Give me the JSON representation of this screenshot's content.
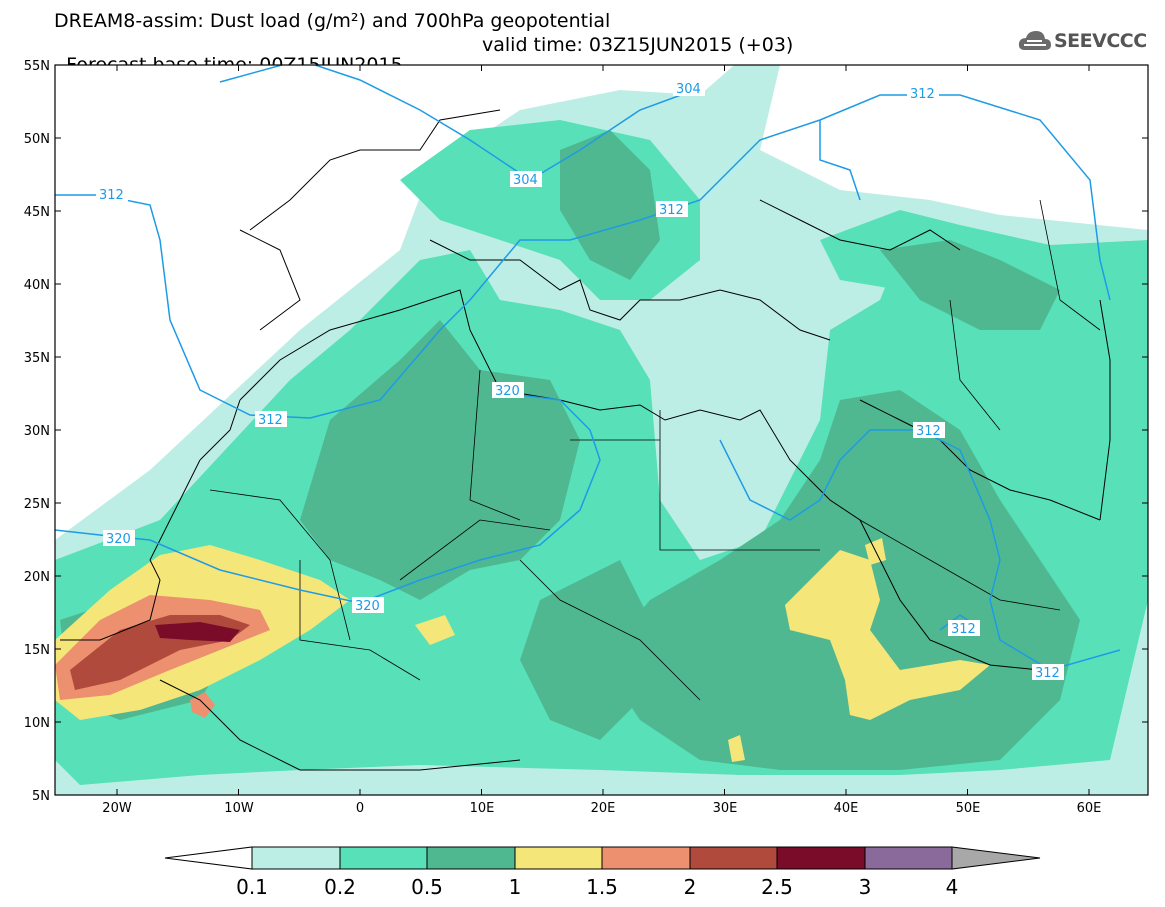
{
  "header": {
    "title_line1": "DREAM8-assim: Dust load (g/m²) and 700hPa geopotential",
    "title_line2_left": "Forecast base time: 00Z15JUN2015",
    "title_line2_right": "valid time: 03Z15JUN2015 (+03)",
    "logo_text": "SEEVCCC",
    "logo_icon": "cloud-icon"
  },
  "axes": {
    "lat_labels": [
      "55N",
      "50N",
      "45N",
      "40N",
      "35N",
      "30N",
      "25N",
      "20N",
      "15N",
      "10N",
      "5N"
    ],
    "lon_labels": [
      "20W",
      "10W",
      "0",
      "10E",
      "20E",
      "30E",
      "40E",
      "50E",
      "60E"
    ]
  },
  "contours": {
    "labels": [
      {
        "text": "304",
        "id": "c304a"
      },
      {
        "text": "304",
        "id": "c304b"
      },
      {
        "text": "312",
        "id": "c312a"
      },
      {
        "text": "312",
        "id": "c312b"
      },
      {
        "text": "312",
        "id": "c312c"
      },
      {
        "text": "312",
        "id": "c312d"
      },
      {
        "text": "312",
        "id": "c312e"
      },
      {
        "text": "312",
        "id": "c312f"
      },
      {
        "text": "312",
        "id": "c312g"
      },
      {
        "text": "320",
        "id": "c320a"
      },
      {
        "text": "320",
        "id": "c320b"
      },
      {
        "text": "320",
        "id": "c320c"
      }
    ],
    "line_color": "#1e9be6"
  },
  "colorbar": {
    "labels": [
      "0.1",
      "0.2",
      "0.5",
      "1",
      "1.5",
      "2",
      "2.5",
      "3",
      "4"
    ],
    "colors": [
      "#ffffff",
      "#bdeee5",
      "#58e0b8",
      "#4fb890",
      "#f5e67a",
      "#ec9070",
      "#b04a3c",
      "#7a0c2a",
      "#8a6a9a",
      "#a8a8a8"
    ]
  }
}
